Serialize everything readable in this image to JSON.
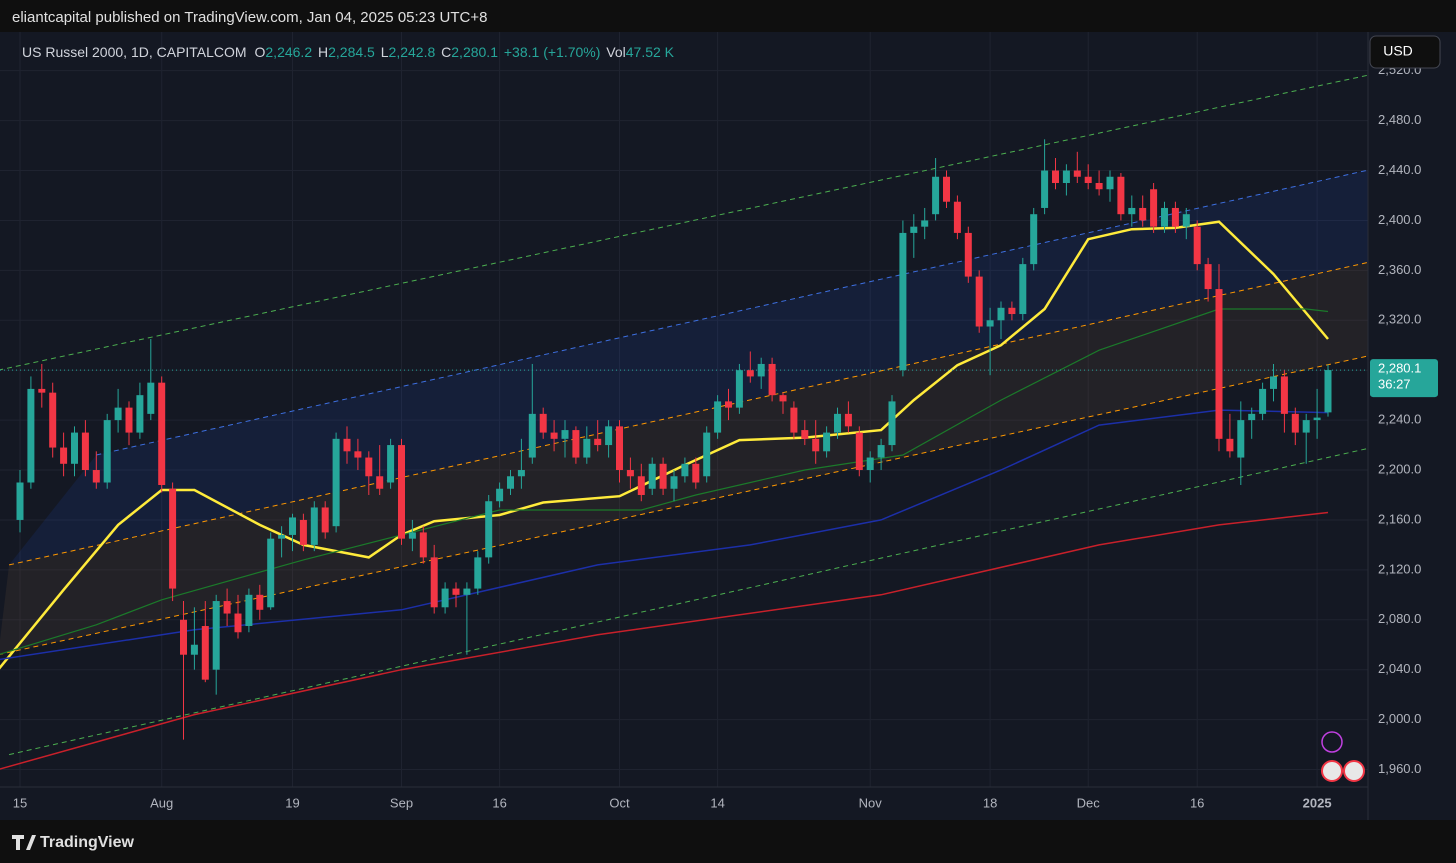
{
  "header": {
    "publisher": "eliantcapital published on TradingView.com, Jan 04, 2025 05:23 UTC+8",
    "currency": "USD",
    "brand": "TradingView"
  },
  "chart_data": {
    "type": "candlestick",
    "legend": {
      "symbol": "US Russel 2000, 1D, CAPITALCOM",
      "o_label": "O",
      "open": "2,246.2",
      "h_label": "H",
      "high": "2,284.5",
      "l_label": "L",
      "low": "2,242.8",
      "c_label": "C",
      "close": "2,280.1",
      "change": "+38.1 (+1.70%)",
      "vol_label": "Vol",
      "volume": "47.52 K"
    },
    "categories": [
      "15",
      null,
      null,
      null,
      null,
      null,
      null,
      null,
      null,
      null,
      null,
      null,
      null,
      "Aug",
      null,
      null,
      null,
      null,
      null,
      null,
      null,
      null,
      null,
      null,
      null,
      "19",
      null,
      null,
      null,
      null,
      null,
      null,
      null,
      null,
      null,
      "Sep",
      null,
      null,
      null,
      null,
      null,
      null,
      null,
      null,
      "16",
      null,
      null,
      null,
      null,
      null,
      null,
      null,
      null,
      null,
      null,
      "Oct",
      null,
      null,
      null,
      null,
      null,
      null,
      null,
      null,
      "14",
      null,
      null,
      null,
      null,
      null,
      null,
      null,
      null,
      null,
      null,
      null,
      null,
      null,
      "Nov",
      null,
      null,
      null,
      null,
      null,
      null,
      null,
      null,
      null,
      null,
      "18",
      null,
      null,
      null,
      null,
      null,
      null,
      null,
      null,
      "Dec",
      null,
      null,
      null,
      null,
      null,
      null,
      null,
      null,
      null,
      "16",
      null,
      null,
      null,
      null,
      null,
      null,
      null,
      null,
      null,
      null,
      "2025",
      null
    ],
    "open": [
      2160,
      2190,
      2265,
      2262,
      2218,
      2205,
      2230,
      2200,
      2190,
      2240,
      2250,
      2230,
      2245,
      2270,
      2185,
      2080,
      2052,
      2075,
      2040,
      2095,
      2085,
      2075,
      2100,
      2090,
      2145,
      2148,
      2160,
      2140,
      2170,
      2155,
      2225,
      2215,
      2210,
      2195,
      2190,
      2220,
      2145,
      2150,
      2130,
      2090,
      2105,
      2100,
      2105,
      2130,
      2175,
      2185,
      2195,
      2210,
      2245,
      2230,
      2225,
      2232,
      2210,
      2225,
      2220,
      2235,
      2200,
      2195,
      2185,
      2205,
      2185,
      2195,
      2205,
      2195,
      2230,
      2255,
      2250,
      2280,
      2275,
      2285,
      2260,
      2250,
      2232,
      2225,
      2215,
      2230,
      2245,
      2230,
      2200,
      2210,
      2220,
      2280,
      2390,
      2395,
      2405,
      2435,
      2415,
      2390,
      2355,
      2315,
      2320,
      2330,
      2325,
      2365,
      2410,
      2440,
      2430,
      2440,
      2435,
      2430,
      2425,
      2435,
      2405,
      2410,
      2425,
      2395,
      2410,
      2395,
      2395,
      2365,
      2345,
      2225,
      2210,
      2240,
      2245,
      2265,
      2275,
      2245,
      2230,
      2240,
      2246.2
    ],
    "high": [
      2200,
      2275,
      2285,
      2270,
      2230,
      2235,
      2240,
      2215,
      2245,
      2265,
      2255,
      2270,
      2305,
      2275,
      2190,
      2095,
      2090,
      2095,
      2100,
      2105,
      2100,
      2105,
      2108,
      2150,
      2155,
      2165,
      2165,
      2175,
      2175,
      2230,
      2235,
      2225,
      2215,
      2220,
      2225,
      2225,
      2160,
      2155,
      2140,
      2110,
      2110,
      2110,
      2135,
      2180,
      2190,
      2200,
      2225,
      2285,
      2250,
      2240,
      2240,
      2235,
      2235,
      2240,
      2240,
      2240,
      2210,
      2205,
      2210,
      2210,
      2200,
      2210,
      2210,
      2235,
      2260,
      2265,
      2285,
      2295,
      2290,
      2290,
      2262,
      2255,
      2240,
      2240,
      2235,
      2250,
      2255,
      2235,
      2215,
      2225,
      2260,
      2400,
      2405,
      2410,
      2450,
      2440,
      2420,
      2395,
      2360,
      2330,
      2335,
      2335,
      2370,
      2410,
      2465,
      2450,
      2445,
      2455,
      2445,
      2440,
      2440,
      2438,
      2420,
      2420,
      2430,
      2415,
      2415,
      2410,
      2400,
      2370,
      2365,
      2245,
      2255,
      2250,
      2270,
      2285,
      2280,
      2250,
      2245,
      2265,
      2284.5
    ],
    "low": [
      2150,
      2185,
      2250,
      2210,
      2195,
      2195,
      2195,
      2185,
      2185,
      2230,
      2220,
      2225,
      2240,
      2182,
      2095,
      1984,
      2040,
      2030,
      2020,
      2075,
      2065,
      2070,
      2080,
      2088,
      2130,
      2135,
      2135,
      2135,
      2145,
      2150,
      2205,
      2200,
      2180,
      2180,
      2185,
      2140,
      2135,
      2125,
      2085,
      2085,
      2090,
      2052,
      2100,
      2125,
      2170,
      2180,
      2185,
      2205,
      2225,
      2215,
      2210,
      2205,
      2205,
      2215,
      2210,
      2190,
      2185,
      2175,
      2180,
      2180,
      2175,
      2190,
      2185,
      2190,
      2225,
      2240,
      2245,
      2270,
      2265,
      2255,
      2245,
      2225,
      2220,
      2205,
      2210,
      2225,
      2230,
      2195,
      2190,
      2200,
      2215,
      2275,
      2370,
      2385,
      2400,
      2410,
      2385,
      2350,
      2310,
      2276,
      2305,
      2320,
      2320,
      2360,
      2405,
      2425,
      2420,
      2430,
      2425,
      2420,
      2415,
      2400,
      2395,
      2395,
      2390,
      2390,
      2390,
      2385,
      2360,
      2335,
      2215,
      2210,
      2188,
      2225,
      2240,
      2255,
      2230,
      2220,
      2205,
      2225,
      2242.8
    ],
    "close": [
      2190,
      2265,
      2262,
      2218,
      2205,
      2230,
      2200,
      2190,
      2240,
      2250,
      2230,
      2260,
      2270,
      2188,
      2105,
      2052,
      2060,
      2032,
      2095,
      2085,
      2070,
      2100,
      2088,
      2145,
      2148,
      2162,
      2140,
      2170,
      2150,
      2225,
      2215,
      2210,
      2195,
      2185,
      2220,
      2145,
      2150,
      2130,
      2090,
      2105,
      2100,
      2105,
      2130,
      2175,
      2185,
      2195,
      2200,
      2245,
      2230,
      2225,
      2232,
      2210,
      2225,
      2220,
      2235,
      2200,
      2195,
      2180,
      2205,
      2185,
      2195,
      2205,
      2190,
      2230,
      2255,
      2250,
      2280,
      2275,
      2285,
      2260,
      2255,
      2230,
      2225,
      2215,
      2230,
      2245,
      2235,
      2200,
      2210,
      2220,
      2255,
      2390,
      2395,
      2400,
      2435,
      2415,
      2390,
      2355,
      2315,
      2320,
      2330,
      2325,
      2365,
      2405,
      2440,
      2430,
      2440,
      2435,
      2430,
      2425,
      2435,
      2405,
      2410,
      2400,
      2395,
      2410,
      2395,
      2405,
      2365,
      2345,
      2225,
      2215,
      2240,
      2245,
      2265,
      2275,
      2245,
      2230,
      2240,
      2242,
      2280.1
    ],
    "up_color": "#26a69a",
    "down_color": "#f23645",
    "overlays": [
      {
        "color": "#4caf50",
        "dash": true,
        "width": 1,
        "x": [
          -2,
          124
        ],
        "values": [
          2280,
          2517
        ]
      },
      {
        "color": "#3d6fe0",
        "dash": true,
        "width": 1,
        "x": [
          7,
          124
        ],
        "values": [
          2212,
          2441
        ]
      },
      {
        "color": "#ff9800",
        "dash": true,
        "width": 1,
        "x": [
          -1,
          124
        ],
        "values": [
          2124,
          2367
        ]
      },
      {
        "color": "#ff9800",
        "dash": true,
        "width": 1,
        "x": [
          -2,
          124
        ],
        "values": [
          2052,
          2292
        ]
      },
      {
        "color": "#4caf50",
        "dash": true,
        "width": 1,
        "x": [
          -1,
          124
        ],
        "values": [
          1972,
          2218
        ]
      },
      {
        "color": "#ffeb3b",
        "dash": false,
        "width": 2.5,
        "x": [
          -2,
          4,
          9,
          13,
          16,
          22,
          26,
          32,
          35,
          38,
          44,
          48,
          55,
          61,
          66,
          72,
          79,
          82,
          86,
          90,
          94,
          98,
          102,
          106,
          110,
          115,
          120
        ],
        "values": [
          2040,
          2104,
          2156,
          2184,
          2184,
          2156,
          2140,
          2130,
          2148,
          2159,
          2164,
          2174,
          2179,
          2204,
          2224,
          2226,
          2232,
          2256,
          2284,
          2300,
          2329,
          2385,
          2393,
          2394,
          2399,
          2357,
          2305
        ]
      },
      {
        "color": "#1b7a2a",
        "dash": false,
        "width": 1.2,
        "x": [
          -2,
          7,
          13,
          26,
          35,
          44,
          57,
          62,
          72,
          81,
          90,
          99,
          110,
          118,
          120
        ],
        "values": [
          2052,
          2076,
          2096,
          2128,
          2148,
          2168,
          2168,
          2180,
          2200,
          2212,
          2256,
          2296,
          2329,
          2329,
          2327
        ]
      },
      {
        "color": "#1c2fa8",
        "dash": false,
        "width": 1.5,
        "x": [
          -2,
          16,
          35,
          53,
          67,
          79,
          90,
          99,
          110,
          120
        ],
        "values": [
          2048,
          2072,
          2088,
          2124,
          2140,
          2160,
          2200,
          2236,
          2248,
          2246
        ]
      },
      {
        "color": "#c8202a",
        "dash": false,
        "width": 1.5,
        "x": [
          -2,
          16,
          35,
          53,
          79,
          99,
          110,
          120
        ],
        "values": [
          1960,
          2004,
          2040,
          2068,
          2100,
          2140,
          2156,
          2166
        ]
      }
    ],
    "ylim": [
      1946,
      2551
    ],
    "yticks": [
      {
        "value": 1960,
        "label": "1,960.0"
      },
      {
        "value": 2000,
        "label": "2,000.0"
      },
      {
        "value": 2040,
        "label": "2,040.0"
      },
      {
        "value": 2080,
        "label": "2,080.0"
      },
      {
        "value": 2120,
        "label": "2,120.0"
      },
      {
        "value": 2160,
        "label": "2,160.0"
      },
      {
        "value": 2200,
        "label": "2,200.0"
      },
      {
        "value": 2240,
        "label": "2,240.0"
      },
      {
        "value": 2280,
        "label": "2,280.0"
      },
      {
        "value": 2320,
        "label": "2,320.0"
      },
      {
        "value": 2360,
        "label": "2,360.0"
      },
      {
        "value": 2400,
        "label": "2,400.0"
      },
      {
        "value": 2440,
        "label": "2,440.0"
      },
      {
        "value": 2480,
        "label": "2,480.0"
      },
      {
        "value": 2520,
        "label": "2,520.0"
      }
    ],
    "grid": true,
    "price_tag": {
      "value": 2280.1,
      "label": "2,280.1",
      "countdown": "36:27"
    }
  }
}
